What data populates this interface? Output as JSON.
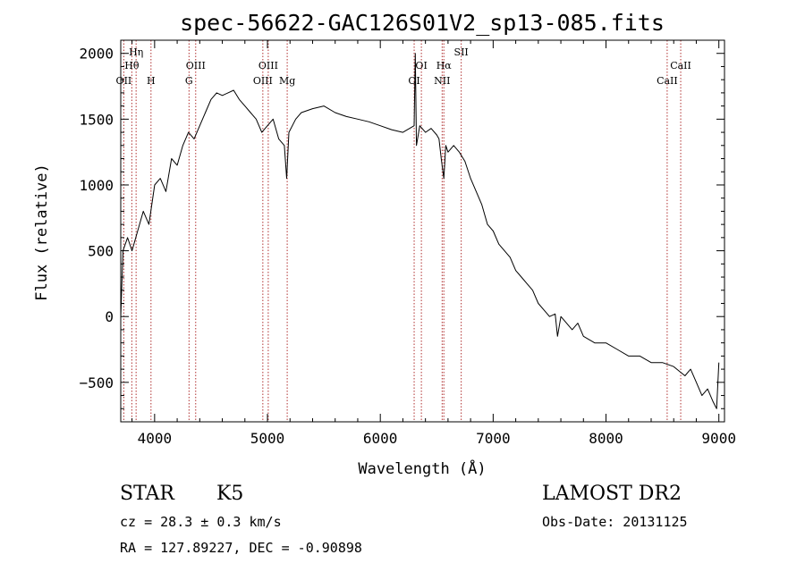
{
  "chart_data": {
    "type": "line",
    "title": "spec-56622-GAC126S01V2_sp13-085.fits",
    "xlabel": "Wavelength (Å)",
    "ylabel": "Flux (relative)",
    "xlim": [
      3700,
      9050
    ],
    "ylim": [
      -800,
      2100
    ],
    "xticks": [
      4000,
      5000,
      6000,
      7000,
      8000,
      9000
    ],
    "yticks": [
      -500,
      0,
      500,
      1000,
      1500,
      2000
    ],
    "grid": false,
    "series": [
      {
        "x": [
          3700,
          3720,
          3760,
          3800,
          3850,
          3900,
          3950,
          4000,
          4050,
          4100,
          4150,
          4200,
          4250,
          4300,
          4350,
          4400,
          4450,
          4500,
          4550,
          4600,
          4650,
          4700,
          4750,
          4800,
          4850,
          4900,
          4950,
          5000,
          5050,
          5100,
          5150,
          5170,
          5190,
          5250,
          5300,
          5400,
          5500,
          5600,
          5700,
          5800,
          5900,
          6000,
          6100,
          6200,
          6300,
          6310,
          6320,
          6350,
          6400,
          6450,
          6500,
          6520,
          6540,
          6563,
          6580,
          6600,
          6650,
          6700,
          6750,
          6800,
          6850,
          6900,
          6950,
          7000,
          7050,
          7100,
          7150,
          7200,
          7250,
          7300,
          7350,
          7400,
          7450,
          7500,
          7550,
          7570,
          7600,
          7650,
          7700,
          7750,
          7800,
          7900,
          8000,
          8100,
          8200,
          8300,
          8400,
          8500,
          8600,
          8700,
          8750,
          8800,
          8850,
          8900,
          8950,
          8980,
          9000
        ],
        "y": [
          0,
          500,
          600,
          500,
          650,
          800,
          700,
          1000,
          1050,
          950,
          1200,
          1150,
          1300,
          1400,
          1350,
          1450,
          1550,
          1650,
          1700,
          1680,
          1700,
          1720,
          1650,
          1600,
          1550,
          1500,
          1400,
          1450,
          1500,
          1350,
          1300,
          1050,
          1400,
          1500,
          1550,
          1580,
          1600,
          1550,
          1520,
          1500,
          1480,
          1450,
          1420,
          1400,
          1450,
          2000,
          1300,
          1450,
          1400,
          1430,
          1380,
          1350,
          1200,
          1050,
          1300,
          1250,
          1300,
          1250,
          1180,
          1050,
          950,
          850,
          700,
          650,
          550,
          500,
          450,
          350,
          300,
          250,
          200,
          100,
          50,
          0,
          20,
          -150,
          0,
          -50,
          -100,
          -50,
          -150,
          -200,
          -200,
          -250,
          -300,
          -300,
          -350,
          -350,
          -380,
          -450,
          -400,
          -500,
          -600,
          -550,
          -650,
          -700,
          -350
        ]
      }
    ],
    "lines": [
      {
        "name": "OII",
        "x": 3727
      },
      {
        "name": "Hθ",
        "x": 3798
      },
      {
        "name": "Hη",
        "x": 3836
      },
      {
        "name": "H",
        "x": 3968
      },
      {
        "name": "G",
        "x": 4305
      },
      {
        "name": "OIII",
        "x": 4364
      },
      {
        "name": "OIII",
        "x": 4959
      },
      {
        "name": "OIII",
        "x": 5007
      },
      {
        "name": "Mg",
        "x": 5175
      },
      {
        "name": "OI",
        "x": 6300
      },
      {
        "name": "OI",
        "x": 6364
      },
      {
        "name": "NII",
        "x": 6548
      },
      {
        "name": "Hα",
        "x": 6563
      },
      {
        "name": "SII",
        "x": 6717
      },
      {
        "name": "CaII",
        "x": 8542
      },
      {
        "name": "CaII",
        "x": 8662
      }
    ]
  },
  "info": {
    "class": "STAR",
    "subclass": "K5",
    "survey": "LAMOST DR2",
    "cz": "cz = 28.3 ± 0.3 km/s",
    "obs_date": "Obs-Date: 20131125",
    "radec": "RA = 127.89227, DEC =  -0.90898"
  }
}
